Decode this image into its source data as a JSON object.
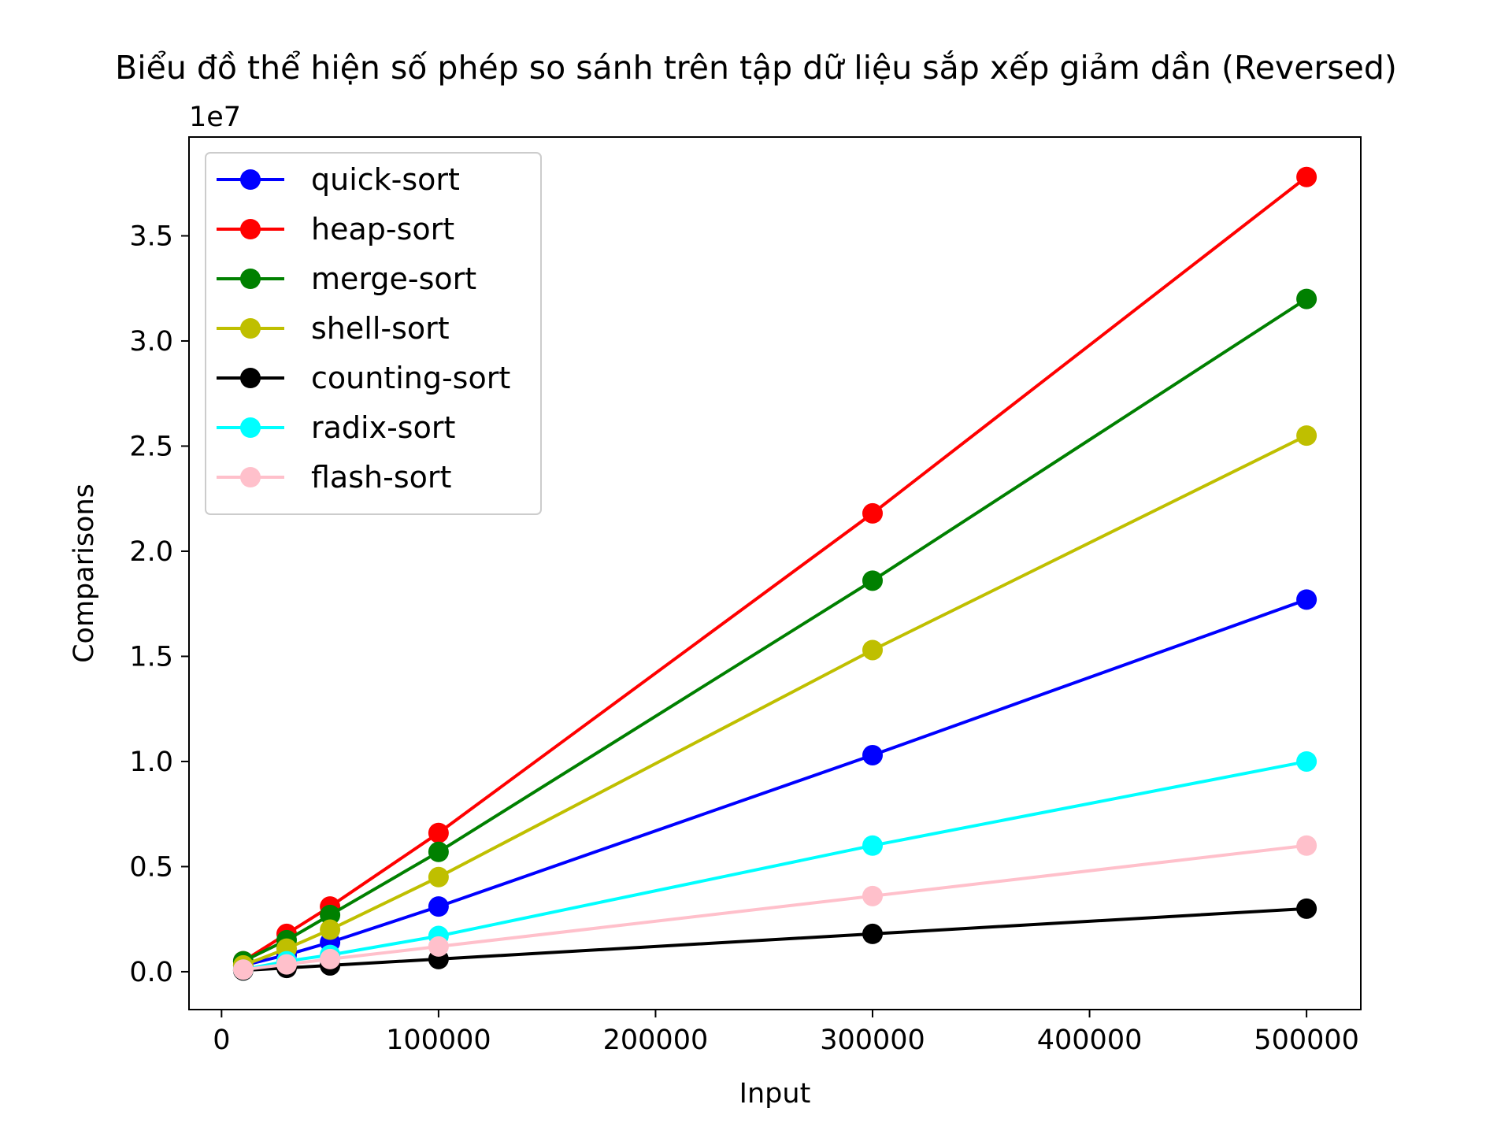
{
  "chart_data": {
    "type": "line",
    "title": "Biểu đồ thể hiện số phép so sánh trên tập dữ liệu sắp xếp giảm dần (Reversed)",
    "xlabel": "Input",
    "ylabel": "Comparisons",
    "y_offset_label": "1e7",
    "x": [
      10000,
      30000,
      50000,
      100000,
      300000,
      500000
    ],
    "xlim": [
      -15000,
      525000
    ],
    "ylim": [
      -0.18,
      3.97
    ],
    "y_scale_note": "values in units of 1e7",
    "x_ticks": [
      0,
      100000,
      200000,
      300000,
      400000,
      500000
    ],
    "x_tick_labels": [
      "0",
      "100000",
      "200000",
      "300000",
      "400000",
      "500000"
    ],
    "y_ticks": [
      0.0,
      0.5,
      1.0,
      1.5,
      2.0,
      2.5,
      3.0,
      3.5
    ],
    "y_tick_labels": [
      "0.0",
      "0.5",
      "1.0",
      "1.5",
      "2.0",
      "2.5",
      "3.0",
      "3.5"
    ],
    "legend_position": "upper-left",
    "series": [
      {
        "name": "quick-sort",
        "color": "#0000ff",
        "values": [
          0.03,
          0.08,
          0.14,
          0.31,
          1.03,
          1.77
        ]
      },
      {
        "name": "heap-sort",
        "color": "#ff0000",
        "values": [
          0.05,
          0.18,
          0.31,
          0.66,
          2.18,
          3.78
        ]
      },
      {
        "name": "merge-sort",
        "color": "#008000",
        "values": [
          0.05,
          0.15,
          0.27,
          0.57,
          1.86,
          3.2
        ]
      },
      {
        "name": "shell-sort",
        "color": "#bfbf00",
        "values": [
          0.03,
          0.11,
          0.2,
          0.45,
          1.53,
          2.55
        ]
      },
      {
        "name": "counting-sort",
        "color": "#000000",
        "values": [
          0.006,
          0.018,
          0.03,
          0.06,
          0.18,
          0.3
        ]
      },
      {
        "name": "radix-sort",
        "color": "#00ffff",
        "values": [
          0.01,
          0.05,
          0.08,
          0.17,
          0.6,
          1.0
        ]
      },
      {
        "name": "flash-sort",
        "color": "#ffc0cb",
        "values": [
          0.01,
          0.035,
          0.06,
          0.12,
          0.36,
          0.6
        ]
      }
    ]
  }
}
